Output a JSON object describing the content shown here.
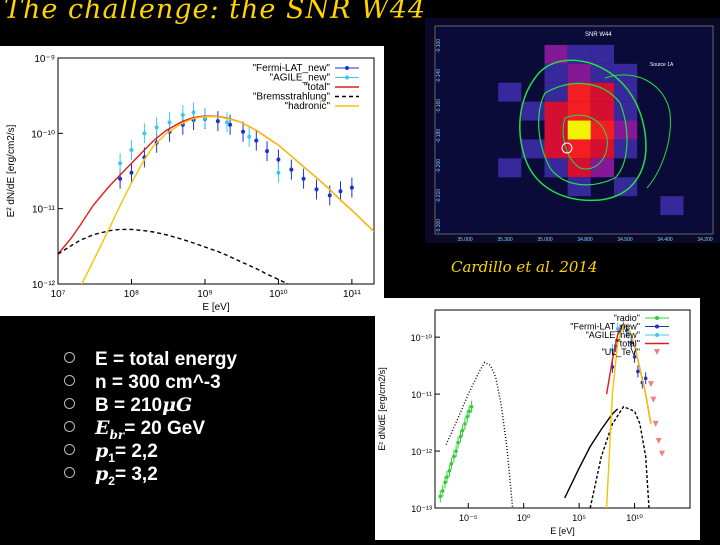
{
  "slide": {
    "title": "The challenge: the SNR W44",
    "citation": "Cardillo et al. 2014"
  },
  "params": [
    {
      "text": "E = total energy"
    },
    {
      "text": "n = 300 cm^-3"
    },
    {
      "pre": "B = 210",
      "sym": "μG",
      "post": ""
    },
    {
      "pre": "",
      "sym": "E",
      "sub": "br",
      "post": "= 20 GeV"
    },
    {
      "pre": "",
      "sym": "p",
      "sub": "1",
      "post": "= 2,2"
    },
    {
      "pre": "",
      "sym": "p",
      "sub": "2",
      "post": "= 3,2"
    }
  ],
  "colors": {
    "title": "#ffd400",
    "fermi": "#1a33cc",
    "agile": "#3ec8e8",
    "total": "#e41a1c",
    "hadronic": "#f5c400",
    "brems": "#000000",
    "radio": "#33cc33",
    "ul": "#f08080"
  },
  "chart_data": [
    {
      "type": "line",
      "xlabel": "E [eV]",
      "ylabel": "E² dN/dE [erg/cm2/s]",
      "xscale": "log",
      "yscale": "log",
      "xlim": [
        10000000.0,
        200000000000.0
      ],
      "ylim": [
        1e-12,
        1e-09
      ],
      "xticks": [
        {
          "v": 10000000.0,
          "l": "10⁷"
        },
        {
          "v": 100000000.0,
          "l": "10⁸"
        },
        {
          "v": 1000000000.0,
          "l": "10⁹"
        },
        {
          "v": 10000000000.0,
          "l": "10¹⁰"
        },
        {
          "v": 100000000000.0,
          "l": "10¹¹"
        }
      ],
      "yticks": [
        {
          "v": 1e-12,
          "l": "10⁻¹²"
        },
        {
          "v": 1e-11,
          "l": "10⁻¹¹"
        },
        {
          "v": 1e-10,
          "l": "10⁻¹⁰"
        },
        {
          "v": 1e-09,
          "l": "10⁻⁹"
        }
      ],
      "legend_position": "top-right",
      "series": [
        {
          "name": "\"Fermi-LAT_new\"",
          "kind": "points",
          "color": "#1a33cc",
          "x": [
            70000000.0,
            100000000.0,
            150000000.0,
            220000000.0,
            330000000.0,
            500000000.0,
            700000000.0,
            1000000000.0,
            1500000000.0,
            2200000000.0,
            3300000000.0,
            5000000000.0,
            7000000000.0,
            10000000000.0,
            15000000000.0,
            22000000000.0,
            33000000000.0,
            50000000000.0,
            70000000000.0,
            100000000000.0
          ],
          "y": [
            2.5e-11,
            3e-11,
            4.8e-11,
            7.5e-11,
            1.05e-10,
            1.3e-10,
            1.5e-10,
            1.55e-10,
            1.45e-10,
            1.3e-10,
            1.05e-10,
            8e-11,
            5.8e-11,
            4.5e-11,
            3.3e-11,
            2.5e-11,
            1.8e-11,
            1.5e-11,
            1.7e-11,
            1.9e-11
          ]
        },
        {
          "name": "\"AGILE_new\"",
          "kind": "points",
          "color": "#3ec8e8",
          "x": [
            70000000.0,
            100000000.0,
            150000000.0,
            220000000.0,
            330000000.0,
            500000000.0,
            700000000.0,
            1000000000.0,
            2000000000.0,
            4000000000.0,
            10000000000.0
          ],
          "y": [
            4e-11,
            6e-11,
            1e-10,
            1.2e-10,
            1.4e-10,
            1.75e-10,
            1.9e-10,
            1.6e-10,
            1.4e-10,
            9e-11,
            3e-11
          ]
        },
        {
          "name": "\"total\"",
          "kind": "line",
          "color": "#e41a1c",
          "dash": "",
          "x": [
            10000000.0,
            15000000.0,
            20000000.0,
            30000000.0,
            50000000.0,
            70000000.0,
            100000000.0,
            150000000.0,
            200000000.0,
            300000000.0,
            500000000.0,
            700000000.0,
            1000000000.0,
            1500000000.0,
            2000000000.0,
            3000000000.0,
            5000000000.0,
            7000000000.0,
            10000000000.0,
            15000000000.0,
            20000000000.0,
            30000000000.0,
            50000000000.0,
            70000000000.0,
            100000000000.0,
            150000000000.0,
            200000000000.0
          ],
          "y": [
            2.5e-12,
            4e-12,
            6e-12,
            1.1e-11,
            2e-11,
            2.8e-11,
            4e-11,
            6e-11,
            8e-11,
            1.1e-10,
            1.45e-10,
            1.62e-10,
            1.7e-10,
            1.68e-10,
            1.6e-10,
            1.42e-10,
            1.1e-10,
            8.8e-11,
            7e-11,
            5e-11,
            3.9e-11,
            2.8e-11,
            1.8e-11,
            1.3e-11,
            9.5e-12,
            6.5e-12,
            5e-12
          ]
        },
        {
          "name": "\"Bremsstrahlung\"",
          "kind": "line",
          "color": "#000000",
          "dash": "4,3",
          "x": [
            10000000.0,
            15000000.0,
            20000000.0,
            30000000.0,
            50000000.0,
            70000000.0,
            100000000.0,
            150000000.0,
            200000000.0,
            300000000.0,
            500000000.0,
            700000000.0,
            1000000000.0,
            1500000000.0,
            2000000000.0,
            3000000000.0,
            5000000000.0,
            7000000000.0,
            10000000000.0,
            15000000000.0,
            20000000000.0
          ],
          "y": [
            2.5e-12,
            3.2e-12,
            3.8e-12,
            4.5e-12,
            5.1e-12,
            5.3e-12,
            5.3e-12,
            5.1e-12,
            4.9e-12,
            4.5e-12,
            3.9e-12,
            3.5e-12,
            3.1e-12,
            2.7e-12,
            2.4e-12,
            2e-12,
            1.6e-12,
            1.35e-12,
            1.15e-12,
            9.5e-13,
            8.2e-13
          ]
        },
        {
          "name": "\"hadronic\"",
          "kind": "line",
          "color": "#f5c400",
          "dash": "",
          "x": [
            20000000.0,
            30000000.0,
            50000000.0,
            70000000.0,
            100000000.0,
            150000000.0,
            200000000.0,
            300000000.0,
            500000000.0,
            700000000.0,
            1000000000.0,
            1500000000.0,
            2000000000.0,
            3000000000.0,
            5000000000.0,
            7000000000.0,
            10000000000.0,
            15000000000.0,
            20000000000.0,
            30000000000.0,
            50000000000.0,
            70000000000.0,
            100000000000.0,
            150000000000.0,
            200000000000.0
          ],
          "y": [
            9e-13,
            2e-12,
            5.5e-12,
            1.1e-11,
            2.2e-11,
            4.5e-11,
            6.8e-11,
            1e-10,
            1.38e-10,
            1.58e-10,
            1.68e-10,
            1.66e-10,
            1.58e-10,
            1.42e-10,
            1.1e-10,
            8.8e-11,
            7e-11,
            5e-11,
            3.9e-11,
            2.8e-11,
            1.8e-11,
            1.3e-11,
            9.5e-12,
            6.5e-12,
            5e-12
          ]
        }
      ]
    },
    {
      "type": "heatmap",
      "title": "SNR W44",
      "annotation": "Source 1A",
      "xtick_labels": [
        "35.000",
        "35.300",
        "35.000",
        "34.800",
        "34.500",
        "34.400",
        "34.200"
      ],
      "ytick_labels": [
        "-0.100",
        "-0.140",
        "-0.160",
        "-0.180",
        "-0.200",
        "-0.210",
        "-0.300"
      ],
      "cells": [
        {
          "c": 3,
          "r": 1,
          "v": 0.45
        },
        {
          "c": 5,
          "r": 1,
          "v": 0.3
        },
        {
          "c": 4,
          "r": 1,
          "v": 0.35
        },
        {
          "c": 3,
          "r": 2,
          "v": 0.35
        },
        {
          "c": 4,
          "r": 2,
          "v": 0.4
        },
        {
          "c": 5,
          "r": 2,
          "v": 0.25
        },
        {
          "c": 6,
          "r": 2,
          "v": 0.2
        },
        {
          "c": 1,
          "r": 3,
          "v": 0.3
        },
        {
          "c": 3,
          "r": 3,
          "v": 0.35
        },
        {
          "c": 4,
          "r": 3,
          "v": 0.75
        },
        {
          "c": 5,
          "r": 3,
          "v": 0.55
        },
        {
          "c": 6,
          "r": 3,
          "v": 0.3
        },
        {
          "c": 3,
          "r": 4,
          "v": 0.55
        },
        {
          "c": 4,
          "r": 4,
          "v": 0.85
        },
        {
          "c": 5,
          "r": 4,
          "v": 0.6
        },
        {
          "c": 6,
          "r": 4,
          "v": 0.35
        },
        {
          "c": 2,
          "r": 4,
          "v": 0.3
        },
        {
          "c": 3,
          "r": 5,
          "v": 0.6
        },
        {
          "c": 4,
          "r": 5,
          "v": 1.0
        },
        {
          "c": 5,
          "r": 5,
          "v": 0.75
        },
        {
          "c": 6,
          "r": 5,
          "v": 0.4
        },
        {
          "c": 3,
          "r": 6,
          "v": 0.55
        },
        {
          "c": 4,
          "r": 6,
          "v": 0.85
        },
        {
          "c": 5,
          "r": 6,
          "v": 0.65
        },
        {
          "c": 6,
          "r": 6,
          "v": 0.3
        },
        {
          "c": 2,
          "r": 6,
          "v": 0.3
        },
        {
          "c": 3,
          "r": 7,
          "v": 0.35
        },
        {
          "c": 4,
          "r": 7,
          "v": 0.55
        },
        {
          "c": 5,
          "r": 7,
          "v": 0.5
        },
        {
          "c": 1,
          "r": 7,
          "v": 0.3
        },
        {
          "c": 4,
          "r": 8,
          "v": 0.35
        },
        {
          "c": 6,
          "r": 8,
          "v": 0.3
        },
        {
          "c": 8,
          "r": 9,
          "v": 0.35
        }
      ]
    },
    {
      "type": "line",
      "xlabel": "E [eV]",
      "ylabel": "E² dN/dE [erg/cm2/s]",
      "xscale": "log",
      "yscale": "log",
      "xlim": [
        1e-08,
        1000000000000000.0
      ],
      "ylim": [
        1e-13,
        3e-10
      ],
      "xticks": [
        {
          "v": 1e-05,
          "l": "10⁻⁵"
        },
        {
          "v": 1.0,
          "l": "10⁰"
        },
        {
          "v": 100000.0,
          "l": "10⁵"
        },
        {
          "v": 10000000000.0,
          "l": "10¹⁰"
        }
      ],
      "yticks": [
        {
          "v": 1e-13,
          "l": "10⁻¹³"
        },
        {
          "v": 1e-12,
          "l": "10⁻¹²"
        },
        {
          "v": 1e-11,
          "l": "10⁻¹¹"
        },
        {
          "v": 1e-10,
          "l": "10⁻¹⁰"
        }
      ],
      "legend_position": "top-right",
      "series": [
        {
          "name": "\"radio\"",
          "kind": "points",
          "color": "#33cc33",
          "x": [
            3e-08,
            5e-08,
            8e-08,
            1.2e-07,
            2e-07,
            3e-07,
            5e-07,
            8e-07,
            1.2e-06,
            2e-06,
            3e-06,
            5e-06,
            8e-06,
            1.2e-05,
            2e-05
          ],
          "y": [
            1.6e-13,
            2e-13,
            2.8e-13,
            3.5e-13,
            4.5e-13,
            6e-13,
            8e-13,
            1e-12,
            1.4e-12,
            1.8e-12,
            2.3e-12,
            3e-12,
            4e-12,
            5e-12,
            6e-12
          ]
        },
        {
          "name": "\"Fermi-LAT_new\"",
          "kind": "points",
          "color": "#1a33cc",
          "x": [
            100000000.0,
            200000000.0,
            500000000.0,
            1000000000.0,
            2000000000.0,
            5000000000.0,
            10000000000.0,
            20000000000.0,
            50000000000.0,
            100000000000.0
          ],
          "y": [
            3e-11,
            7e-11,
            1.3e-10,
            1.55e-10,
            1.3e-10,
            8e-11,
            4.5e-11,
            2.5e-11,
            1.6e-11,
            1.9e-11
          ]
        },
        {
          "name": "\"AGILE_new\"",
          "kind": "points",
          "color": "#3ec8e8",
          "x": [
            100000000.0,
            300000000.0,
            1000000000.0,
            3000000000.0
          ],
          "y": [
            6e-11,
            1.4e-10,
            1.6e-10,
            1.2e-10
          ]
        },
        {
          "name": "\"total\"",
          "kind": "line",
          "color": "#e41a1c",
          "dash": "",
          "x": [
            30000000.0,
            100000000.0,
            300000000.0,
            1000000000.0,
            3000000000.0,
            10000000000.0,
            30000000000.0,
            100000000000.0,
            300000000000.0
          ],
          "y": [
            1e-11,
            4e-11,
            1.1e-10,
            1.7e-10,
            1.4e-10,
            7e-11,
            2.8e-11,
            1e-11,
            3e-12
          ]
        },
        {
          "name": "\"UL_TeV\"",
          "kind": "points",
          "color": "#f08080",
          "x": [
            300000000000.0,
            500000000000.0,
            800000000000.0,
            1500000000000.0,
            3000000000000.0
          ],
          "y": [
            1.5e-11,
            8e-12,
            3e-12,
            1.5e-12,
            9e-13
          ]
        },
        {
          "name": "",
          "kind": "line",
          "color": "#000000",
          "dash": "1,2",
          "x": [
            1e-07,
            1e-06,
            1e-05,
            0.0001,
            0.0003,
            0.001,
            0.003,
            0.01,
            0.03,
            0.06,
            0.1
          ],
          "y": [
            1.3e-12,
            3.5e-12,
            1e-11,
            2.5e-11,
            3.6e-11,
            3.2e-11,
            2e-11,
            6e-12,
            1.2e-12,
            3e-13,
            1e-13
          ]
        },
        {
          "name": "",
          "kind": "line",
          "color": "#000000",
          "dash": "",
          "x": [
            5000.0,
            100000.0,
            1000000.0,
            10000000.0,
            100000000.0,
            300000000.0
          ],
          "y": [
            1.5e-13,
            5e-13,
            1.2e-12,
            2.4e-12,
            4.5e-12,
            5.5e-12
          ]
        },
        {
          "name": "",
          "kind": "line",
          "color": "#000000",
          "dash": "3,2",
          "x": [
            1000000.0,
            10000000.0,
            100000000.0,
            1000000000.0,
            10000000000.0,
            30000000000.0,
            100000000000.0,
            200000000000.0
          ],
          "y": [
            1e-13,
            8e-13,
            3e-12,
            6e-12,
            5e-12,
            3e-12,
            8e-13,
            1e-13
          ]
        },
        {
          "name": "",
          "kind": "line",
          "color": "#f5c400",
          "dash": "",
          "x": [
            30000000.0,
            100000000.0,
            300000000.0,
            1000000000.0,
            3000000000.0,
            10000000000.0,
            30000000000.0,
            100000000000.0,
            300000000000.0
          ],
          "y": [
            1e-13,
            1e-11,
            8e-11,
            1.65e-10,
            1.4e-10,
            7e-11,
            2.8e-11,
            1e-11,
            3e-12
          ]
        }
      ]
    }
  ]
}
